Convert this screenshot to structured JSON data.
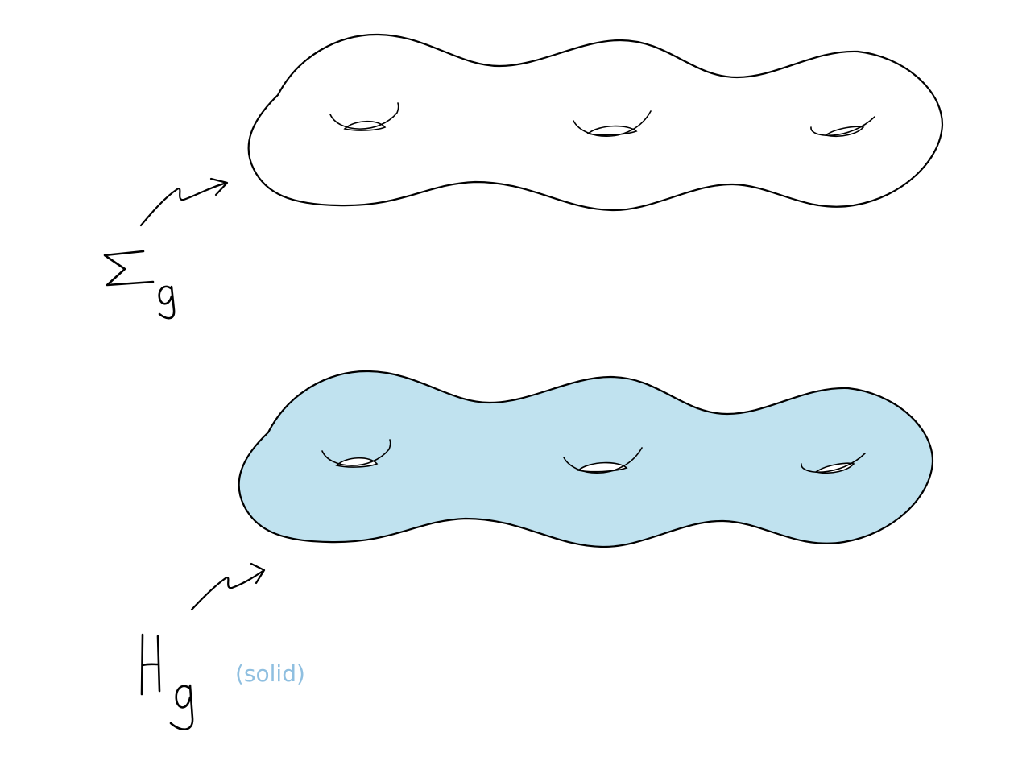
{
  "labels": {
    "surface_label": "Σ",
    "surface_subscript": "g",
    "handlebody_label": "H",
    "handlebody_subscript": "g",
    "handlebody_note": "(solid)"
  },
  "colors": {
    "outline": "#000000",
    "solid_fill": "#c0e2ef",
    "note_text": "#8fbfe0",
    "background": "#ffffff"
  }
}
